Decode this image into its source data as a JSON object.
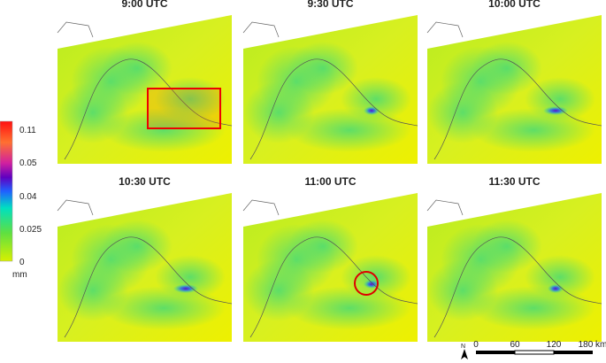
{
  "panels": [
    {
      "title": "9:00 UTC"
    },
    {
      "title": "9:30 UTC"
    },
    {
      "title": "10:00 UTC"
    },
    {
      "title": "10:30 UTC"
    },
    {
      "title": "11:00 UTC"
    },
    {
      "title": "11:30 UTC"
    }
  ],
  "colorbar": {
    "labels": [
      "0.11",
      "0.05",
      "0.04",
      "0.025",
      "0"
    ],
    "unit": "mm"
  },
  "scale_bar": {
    "labels": [
      "0",
      "60",
      "120",
      "180 km"
    ]
  },
  "north": "N"
}
